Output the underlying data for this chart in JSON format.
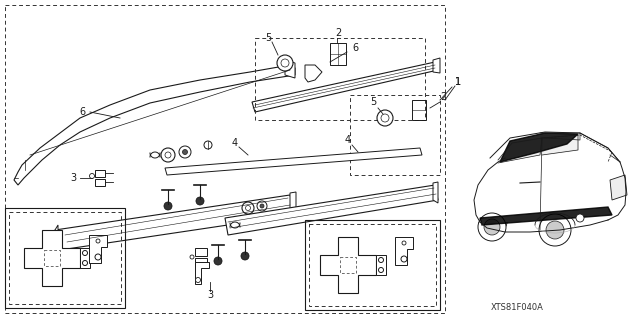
{
  "bg_color": "#ffffff",
  "line_color": "#1a1a1a",
  "diagram_code": "XTS81F040A",
  "figsize": [
    6.4,
    3.19
  ],
  "dpi": 100
}
